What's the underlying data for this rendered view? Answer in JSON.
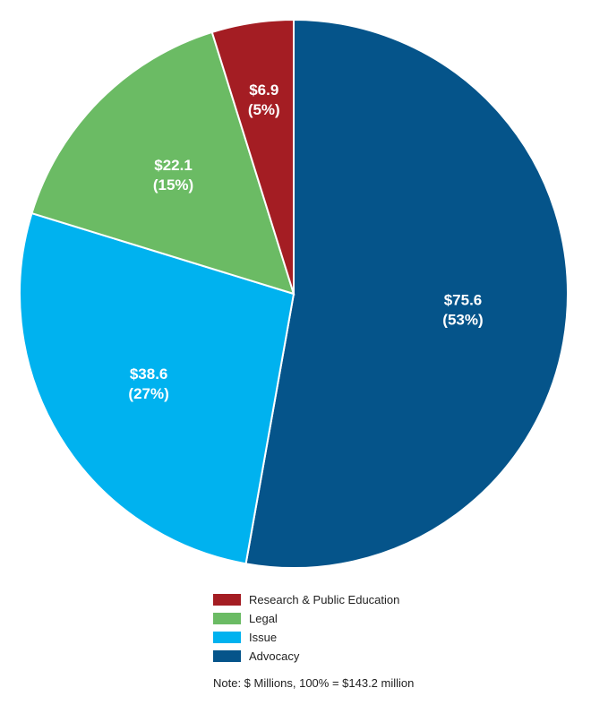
{
  "chart_data": {
    "type": "pie",
    "unit": "$ Millions",
    "total_label": "100% = $143.2 million",
    "series": [
      {
        "name": "Advocacy",
        "value": 75.6,
        "percent": 53,
        "value_label": "$75.6",
        "percent_label": "(53%)",
        "color": "#05548a"
      },
      {
        "name": "Issue",
        "value": 38.6,
        "percent": 27,
        "value_label": "$38.6",
        "percent_label": "(27%)",
        "color": "#00b2ef"
      },
      {
        "name": "Legal",
        "value": 22.1,
        "percent": 15,
        "value_label": "$22.1",
        "percent_label": "(15%)",
        "color": "#6bbb64"
      },
      {
        "name": "Research & Public Education",
        "value": 6.9,
        "percent": 5,
        "value_label": "$6.9",
        "percent_label": "(5%)",
        "color": "#a41d23"
      }
    ],
    "legend_order": [
      "Research & Public Education",
      "Legal",
      "Issue",
      "Advocacy"
    ],
    "note": "Note: $ Millions, 100% = $143.2 million"
  }
}
